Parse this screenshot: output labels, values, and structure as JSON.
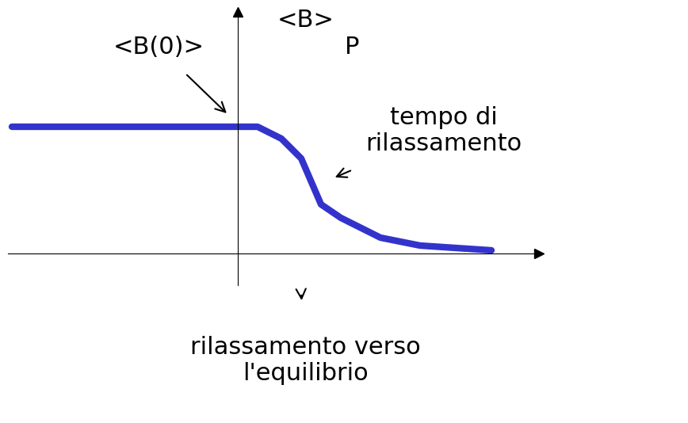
{
  "chart_data": {
    "type": "line",
    "y_label": "<B>",
    "y_label_subscript": "P",
    "annotations": [
      "<B(0)>",
      "tempo di\nrilassamento",
      "rilassamento verso\nl'equilibrio"
    ],
    "x": [
      -2.85,
      0.0,
      0.25,
      0.55,
      0.8,
      1.05,
      1.3,
      1.8,
      2.3,
      3.2
    ],
    "values": [
      1.6,
      1.6,
      1.6,
      1.45,
      1.2,
      0.62,
      0.45,
      0.2,
      0.1,
      0.04
    ],
    "color": "#3333cc",
    "xlim": [
      -2.9,
      3.8
    ],
    "ylim": [
      -0.4,
      3.05
    ],
    "xticks": [],
    "yticks": [],
    "tick_labels": false,
    "grid": false
  }
}
